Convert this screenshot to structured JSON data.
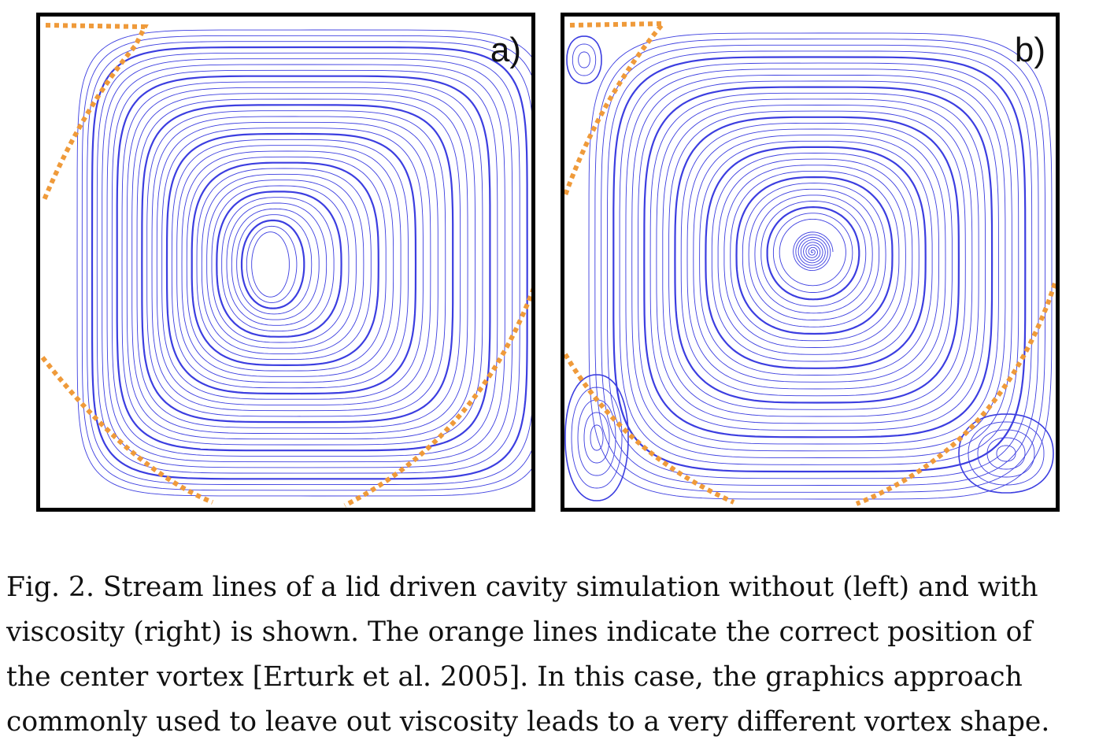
{
  "colors": {
    "streamline": "#3c3ee0",
    "vortex_boundary": "#ef9a3a",
    "frame": "#000000",
    "text": "#111111"
  },
  "panels": [
    {
      "label": "a)"
    },
    {
      "label": "b)"
    }
  ],
  "caption": "Fig. 2.  Stream lines of a lid driven cavity simulation without (left) and with\nviscosity (right) is shown. The orange lines indicate the correct position of\nthe center vortex [Erturk et al. 2005]. In this case, the graphics approach\ncommonly used to leave out viscosity leads to a very different vortex shape."
}
